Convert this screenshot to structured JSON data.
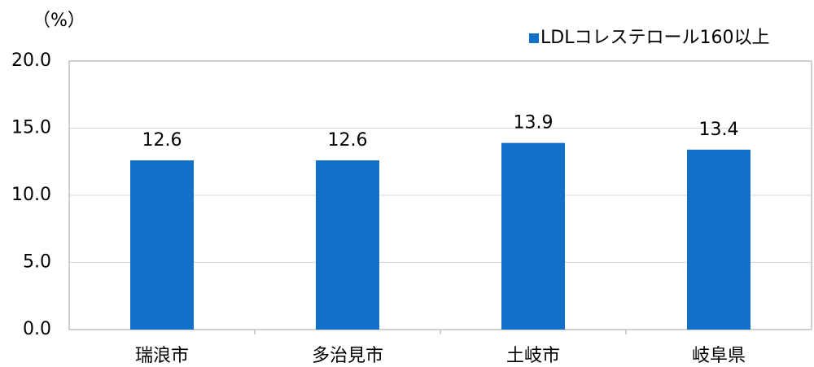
{
  "chart_data": {
    "type": "bar",
    "y_axis_label": "（%）",
    "categories": [
      "瑞浪市",
      "多治見市",
      "土岐市",
      "岐阜県"
    ],
    "series": [
      {
        "name": "LDLコレステロール160以上",
        "color": "#1270c8",
        "values": [
          12.6,
          12.6,
          13.9,
          13.4
        ]
      }
    ],
    "ylim": [
      0,
      20
    ],
    "yticks": [
      {
        "value": 0,
        "label": "0.0"
      },
      {
        "value": 5,
        "label": "5.0"
      },
      {
        "value": 10,
        "label": "10.0"
      },
      {
        "value": 15,
        "label": "15.0"
      },
      {
        "value": 20,
        "label": "20.0"
      }
    ],
    "grid": true,
    "legend": "top-right"
  }
}
